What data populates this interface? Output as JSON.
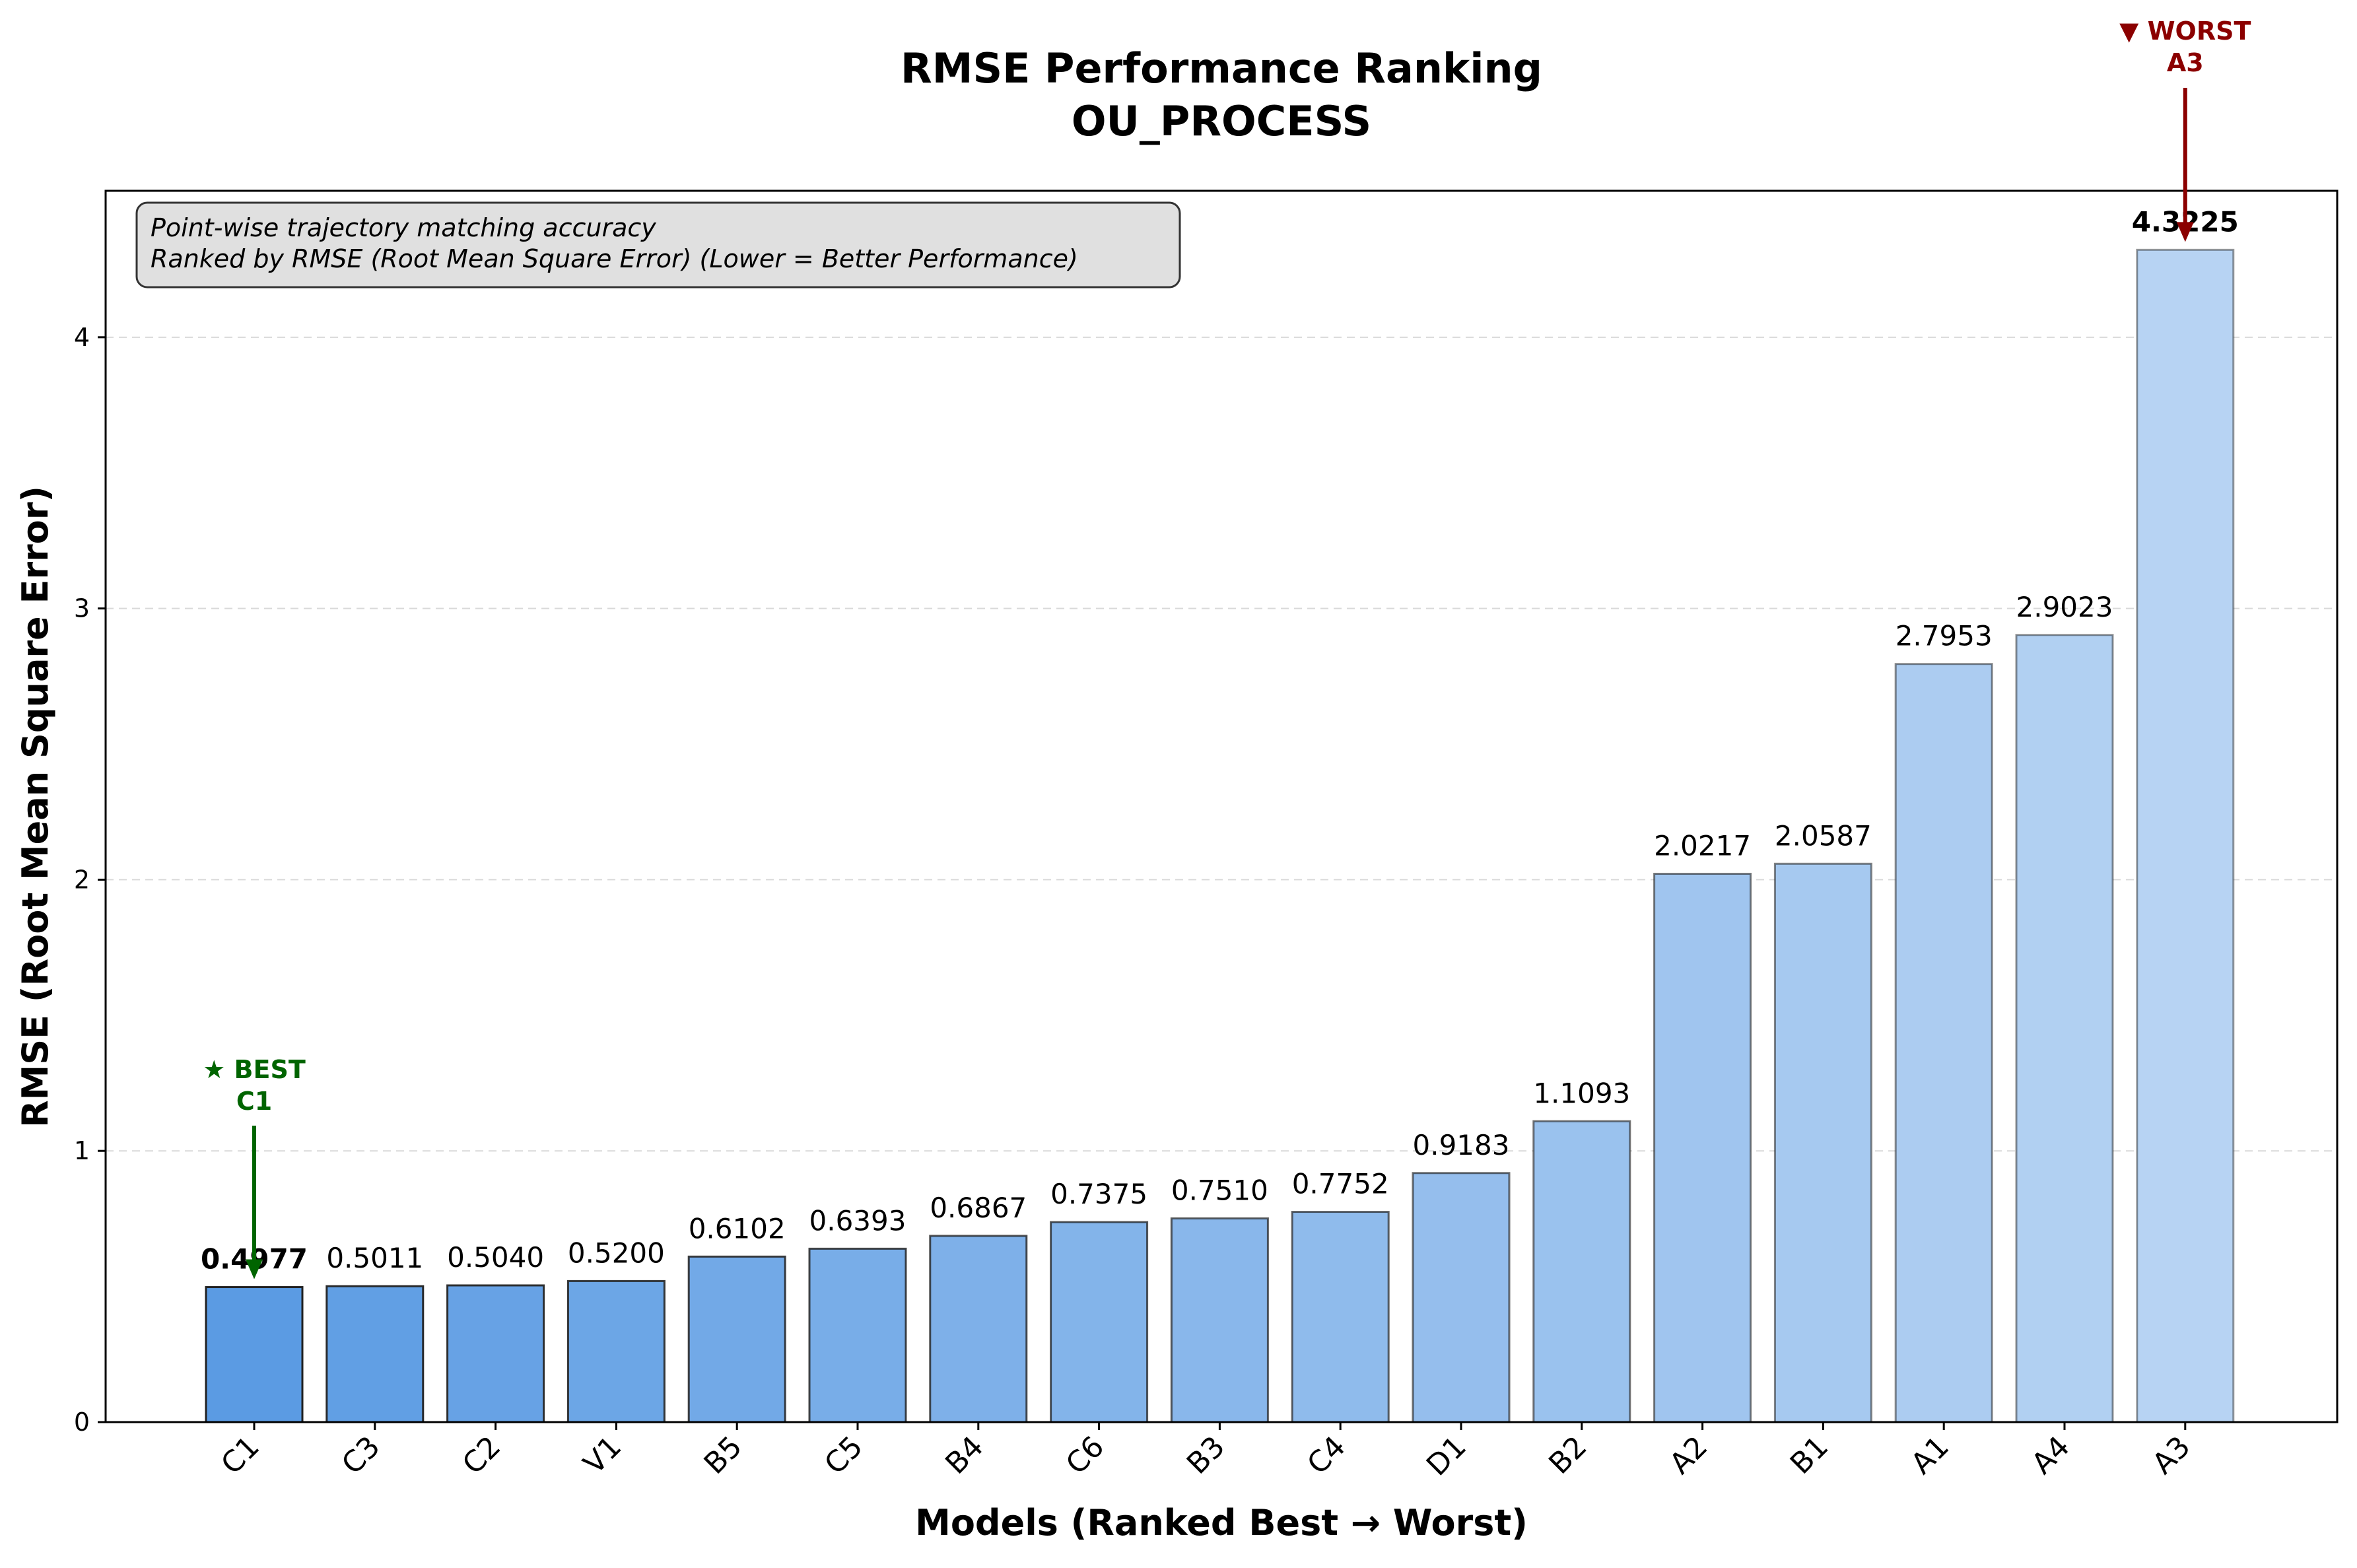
{
  "chart_data": {
    "type": "bar",
    "title": "RMSE Performance Ranking",
    "subtitle": "OU_PROCESS",
    "xlabel": "Models (Ranked Best → Worst)",
    "ylabel": "RMSE (Root Mean Square Error)",
    "categories": [
      "C1",
      "C3",
      "C2",
      "V1",
      "B5",
      "C5",
      "B4",
      "C6",
      "B3",
      "C4",
      "D1",
      "B2",
      "A2",
      "B1",
      "A1",
      "A4",
      "A3"
    ],
    "values": [
      0.4977,
      0.5011,
      0.504,
      0.52,
      0.6102,
      0.6393,
      0.6867,
      0.7375,
      0.751,
      0.7752,
      0.9183,
      1.1093,
      2.0217,
      2.0587,
      2.7953,
      2.9023,
      4.3225
    ],
    "value_labels": [
      "0.4977",
      "0.5011",
      "0.5040",
      "0.5200",
      "0.6102",
      "0.6393",
      "0.6867",
      "0.7375",
      "0.7510",
      "0.7752",
      "0.9183",
      "1.1093",
      "2.0217",
      "2.0587",
      "2.7953",
      "2.9023",
      "4.3225"
    ],
    "ylim": [
      0,
      4.54
    ],
    "yticks": [
      0,
      1,
      2,
      3,
      4
    ],
    "ytick_labels": [
      "0",
      "1",
      "2",
      "3",
      "4"
    ],
    "grid": "y-dashed",
    "legend_placement": "top-left",
    "info_box": {
      "line1": "Point-wise trajectory matching accuracy",
      "line2": "Ranked by RMSE (Root Mean Square Error) (Lower = Better Performance)"
    },
    "annotations": {
      "best": {
        "line1": "★ BEST",
        "line2": "C1",
        "index": 0,
        "color": "#006400"
      },
      "worst": {
        "line1": "▼ WORST",
        "line2": "A3",
        "index": 16,
        "color": "#8b0000"
      }
    },
    "colors": {
      "bar_start": "#5b9be3",
      "bar_end": "#b7d3f3",
      "best": "#006400",
      "worst": "#8b0000",
      "info_box_fill": "#e0e0e0"
    }
  }
}
